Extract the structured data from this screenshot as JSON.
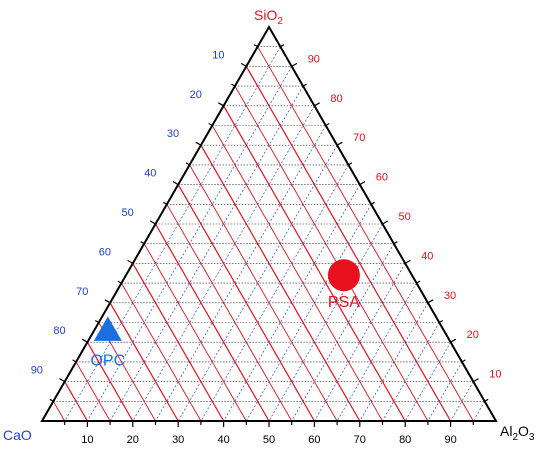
{
  "chart_data": {
    "type": "scatter",
    "subtype": "ternary",
    "axes": {
      "top": {
        "label_main": "SiO",
        "label_sub": "2",
        "color": "#e8101c"
      },
      "left": {
        "label": "CaO",
        "color": "#1f3fd6"
      },
      "right": {
        "label_main": "Al",
        "label_sub": "2",
        "label_tail": "O",
        "label_sub2": "3",
        "color": "#000000"
      }
    },
    "ticks": {
      "left_cao": [
        "10",
        "20",
        "30",
        "40",
        "50",
        "60",
        "70",
        "80",
        "90"
      ],
      "right_sio2": [
        "10",
        "20",
        "30",
        "40",
        "50",
        "60",
        "70",
        "80",
        "90"
      ],
      "bottom_al2o3": [
        "10",
        "20",
        "30",
        "40",
        "50",
        "60",
        "70",
        "80",
        "90"
      ]
    },
    "tick_colors": {
      "left": "#1f3fd6",
      "right": "#e8101c",
      "bottom": "#000000"
    },
    "grid": {
      "on": true,
      "sio2_lines": "dotted-black",
      "cao_lines": "solid-red",
      "al2o3_lines": "dotted-blue"
    },
    "points": [
      {
        "name": "PSA",
        "marker": "circle",
        "color": "#e8101c",
        "SiO2": 37,
        "CaO": 15,
        "Al2O3": 48
      },
      {
        "name": "OPC",
        "marker": "triangle",
        "color": "#1a6fe0",
        "SiO2": 23,
        "CaO": 74,
        "Al2O3": 3
      }
    ]
  }
}
